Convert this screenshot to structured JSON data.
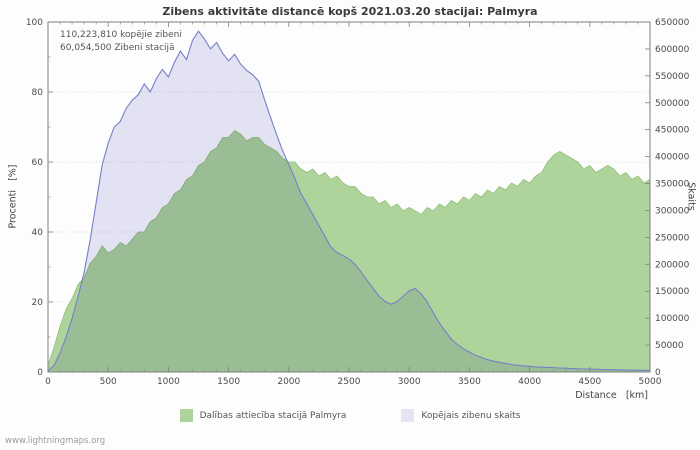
{
  "page": {
    "footer": "www.lightningmaps.org"
  },
  "chart_data": {
    "type": "area",
    "title": "Zibens aktivitāte distancē kopš 2021.03.20 stacijai: Palmyra",
    "xlabel": "Distance   [km]",
    "ylabel_left": "Procenti   [%]",
    "ylabel_right": "Skaits",
    "annotations": [
      "110,223,810 kopējie zibeni",
      "60,054,500 Zibeni stacijā"
    ],
    "xlim": [
      0,
      5000
    ],
    "x_step": 500,
    "ylim_left": [
      0,
      100
    ],
    "y_left_step": 20,
    "ylim_right": [
      0,
      650000
    ],
    "y_right_step": 50000,
    "grid": "horizontal-dotted",
    "legend_position": "bottom-center",
    "x_sample_step": 50,
    "series": [
      {
        "name": "Dalības attiecība stacijā Palmyra",
        "axis": "left",
        "unit": "%",
        "color": "#aed49c",
        "line_color": "#8fbf77",
        "values": [
          2,
          7,
          13,
          18,
          21,
          25,
          27,
          31,
          33,
          36,
          34,
          35,
          37,
          36,
          38,
          40,
          40,
          43,
          44,
          47,
          48,
          51,
          52,
          55,
          56,
          59,
          60,
          63,
          64,
          67,
          67,
          69,
          68,
          66,
          67,
          67,
          65,
          64,
          63,
          61,
          60,
          60,
          58,
          57,
          58,
          56,
          57,
          55,
          56,
          54,
          53,
          53,
          51,
          50,
          50,
          48,
          49,
          47,
          48,
          46,
          47,
          46,
          45,
          47,
          46,
          48,
          47,
          49,
          48,
          50,
          49,
          51,
          50,
          52,
          51,
          53,
          52,
          54,
          53,
          55,
          54,
          56,
          57,
          60,
          62,
          63,
          62,
          61,
          60,
          58,
          59,
          57,
          58,
          59,
          58,
          56,
          57,
          55,
          56,
          54,
          55
        ]
      },
      {
        "name": "Kopējais zibenu skaits",
        "axis": "right",
        "unit": "count",
        "color": "#e4e4f4",
        "line_color": "#7580c8",
        "values": [
          2000,
          12000,
          35000,
          65000,
          100000,
          140000,
          185000,
          245000,
          315000,
          385000,
          425000,
          455000,
          465000,
          490000,
          505000,
          515000,
          535000,
          520000,
          545000,
          562000,
          548000,
          575000,
          596000,
          580000,
          616000,
          633000,
          618000,
          600000,
          612000,
          592000,
          578000,
          590000,
          572000,
          560000,
          552000,
          540000,
          505000,
          472000,
          440000,
          410000,
          385000,
          360000,
          332000,
          312000,
          292000,
          272000,
          252000,
          232000,
          222000,
          216000,
          210000,
          200000,
          186000,
          170000,
          155000,
          141000,
          131000,
          126000,
          131000,
          141000,
          151000,
          155000,
          145000,
          130000,
          110000,
          91000,
          76000,
          61000,
          51000,
          43000,
          37000,
          31000,
          27000,
          23000,
          20000,
          18000,
          16000,
          14000,
          12500,
          11500,
          10500,
          9500,
          9000,
          8500,
          8000,
          7500,
          7000,
          6500,
          6000,
          5600,
          5300,
          5000,
          4700,
          4400,
          4200,
          4000,
          3800,
          3600,
          3400,
          3200,
          3000
        ]
      }
    ]
  }
}
